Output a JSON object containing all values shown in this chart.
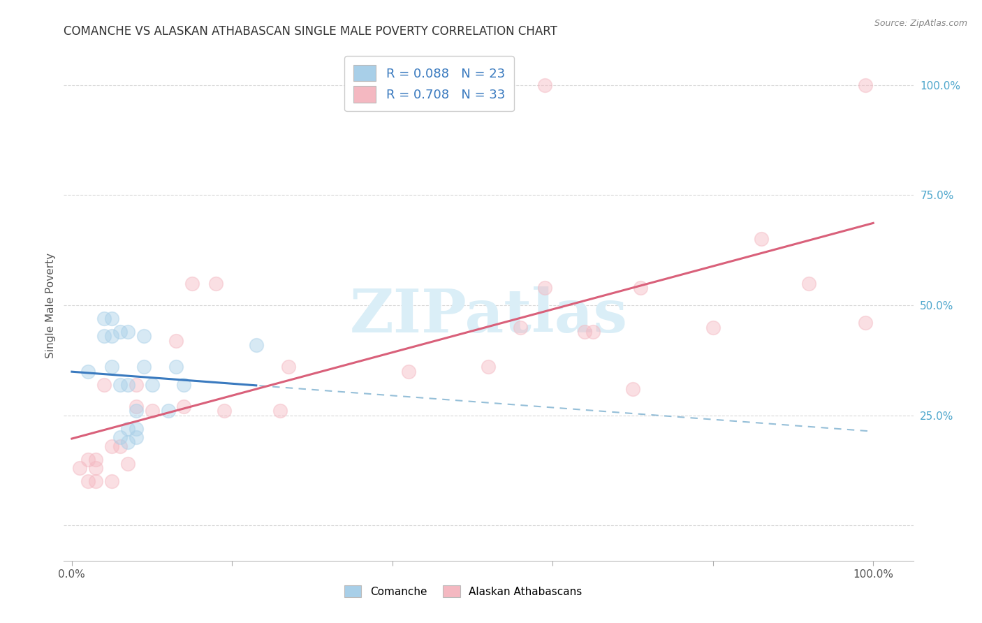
{
  "title": "COMANCHE VS ALASKAN ATHABASCAN SINGLE MALE POVERTY CORRELATION CHART",
  "source": "Source: ZipAtlas.com",
  "ylabel": "Single Male Poverty",
  "ytick_labels": [
    "100.0%",
    "75.0%",
    "50.0%",
    "25.0%"
  ],
  "ytick_positions": [
    1.0,
    0.75,
    0.5,
    0.25
  ],
  "xlim": [
    -0.01,
    1.05
  ],
  "ylim": [
    -0.08,
    1.08
  ],
  "comanche_color": "#a8cfe8",
  "alaskan_color": "#f4b8c1",
  "comanche_line_color": "#3a7abf",
  "alaskan_line_color": "#d9607a",
  "dashed_line_color": "#8ab8d4",
  "watermark_color": "#daeef7",
  "comanche_x": [
    0.02,
    0.04,
    0.04,
    0.05,
    0.05,
    0.05,
    0.06,
    0.06,
    0.06,
    0.07,
    0.07,
    0.07,
    0.07,
    0.08,
    0.08,
    0.08,
    0.09,
    0.09,
    0.1,
    0.12,
    0.13,
    0.14,
    0.23
  ],
  "comanche_y": [
    0.35,
    0.43,
    0.47,
    0.36,
    0.43,
    0.47,
    0.2,
    0.32,
    0.44,
    0.19,
    0.22,
    0.32,
    0.44,
    0.2,
    0.22,
    0.26,
    0.36,
    0.43,
    0.32,
    0.26,
    0.36,
    0.32,
    0.41
  ],
  "alaskan_x": [
    0.01,
    0.02,
    0.02,
    0.03,
    0.03,
    0.03,
    0.04,
    0.05,
    0.05,
    0.06,
    0.07,
    0.08,
    0.08,
    0.1,
    0.13,
    0.14,
    0.15,
    0.18,
    0.19,
    0.26,
    0.27,
    0.42,
    0.52,
    0.56,
    0.59,
    0.64,
    0.65,
    0.7,
    0.71,
    0.8,
    0.86,
    0.92,
    0.99,
    0.59,
    0.99
  ],
  "alaskan_y": [
    0.13,
    0.1,
    0.15,
    0.1,
    0.13,
    0.15,
    0.32,
    0.1,
    0.18,
    0.18,
    0.14,
    0.27,
    0.32,
    0.26,
    0.42,
    0.27,
    0.55,
    0.55,
    0.26,
    0.26,
    0.36,
    0.35,
    0.36,
    0.45,
    0.54,
    0.44,
    0.44,
    0.31,
    0.54,
    0.45,
    0.65,
    0.55,
    0.46,
    1.0,
    1.0
  ],
  "marker_size": 200,
  "marker_alpha": 0.45,
  "title_fontsize": 12,
  "axis_label_fontsize": 11,
  "tick_fontsize": 11,
  "legend_fontsize": 13,
  "grid_color": "#d0d0d0",
  "legend_text_color": "#3a7abf"
}
